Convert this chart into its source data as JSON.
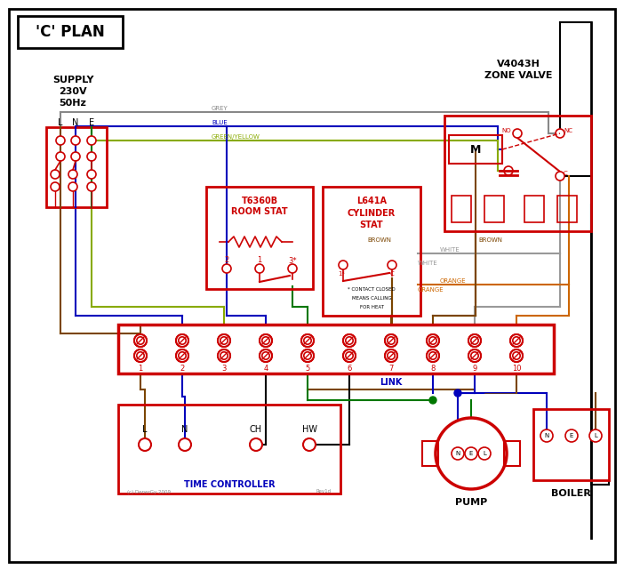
{
  "title": "'C' PLAN",
  "red": "#cc0000",
  "blue": "#0000bb",
  "green": "#007700",
  "brown": "#7b4500",
  "grey": "#888888",
  "orange": "#cc6600",
  "black": "#000000",
  "gy": "#88aa00",
  "zone_valve_title1": "V4043H",
  "zone_valve_title2": "ZONE VALVE",
  "room_stat1": "T6360B",
  "room_stat2": "ROOM STAT",
  "cyl_stat1": "L641A",
  "cyl_stat2": "CYLINDER",
  "cyl_stat3": "STAT",
  "contact_note1": "* CONTACT CLOSED",
  "contact_note2": "MEANS CALLING",
  "contact_note3": "FOR HEAT",
  "tc_title": "TIME CONTROLLER",
  "pump_title": "PUMP",
  "boiler_title": "BOILER",
  "link_text": "LINK",
  "supply1": "SUPPLY",
  "supply2": "230V",
  "supply3": "50Hz",
  "copyright": "(c) DenerGy 2009",
  "rev": "Rev1d"
}
